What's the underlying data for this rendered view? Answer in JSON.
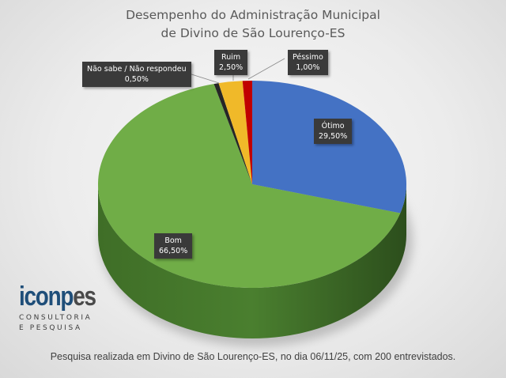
{
  "title": {
    "line1": "Desempenho do Administração Municipal",
    "line2": "de Divino de São Lourenço-ES"
  },
  "labels": {
    "nao_sabe": {
      "name": "Não sabe / Não respondeu",
      "value": "0,50%"
    },
    "ruim": {
      "name": "Ruim",
      "value": "2,50%"
    },
    "pessimo": {
      "name": "Péssimo",
      "value": "1,00%"
    },
    "otimo": {
      "name": "Ótimo",
      "value": "29,50%"
    },
    "bom": {
      "name": "Bom",
      "value": "66,50%"
    }
  },
  "logo": {
    "part1": "iconp",
    "part2": "es",
    "line1": "CONSULTORIA",
    "line2": "E PESQUISA"
  },
  "footer": "Pesquisa realizada em Divino de São Lourenço-ES, no dia 06/11/25, com 200 entrevistados.",
  "colors": {
    "otimo": "#4472c4",
    "bom": "#70ad47",
    "ruim": "#f0b929",
    "pessimo": "#c00000",
    "nao_sabe": "#262626",
    "label_bg": "#3a3a3a"
  },
  "chart_data": {
    "type": "pie",
    "title": "Desempenho do Administração Municipal de Divino de São Lourenço-ES",
    "categories": [
      "Ótimo",
      "Bom",
      "Não sabe / Não respondeu",
      "Ruim",
      "Péssimo"
    ],
    "values": [
      29.5,
      66.5,
      0.5,
      2.5,
      1.0
    ],
    "unit": "%",
    "style": "3d",
    "legend": "data labels with callouts",
    "note": "Pesquisa realizada em Divino de São Lourenço-ES, no dia 06/11/25, com 200 entrevistados."
  }
}
